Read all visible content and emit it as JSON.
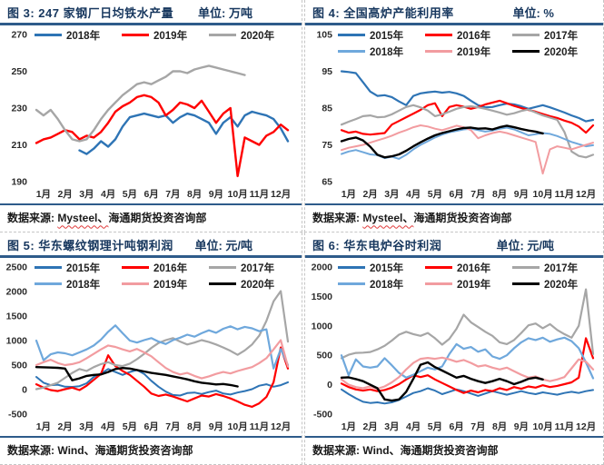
{
  "page": {
    "accent_rule_color": "#2E5B8A",
    "title_color": "#17375E",
    "divider_style": "dashed-gray"
  },
  "panels": [
    {
      "fig_label": "图 3: 247 家钢厂日均铁水产量",
      "unit": "单位: 万吨",
      "source_prefix": "数据来源: ",
      "source_flagged": "Mysteel、",
      "source_rest": "海通期货投资咨询部"
    },
    {
      "fig_label": "图 4: 全国高炉产能利用率",
      "unit": "单位: %",
      "source_prefix": "数据来源: ",
      "source_flagged": "Mysteel、",
      "source_rest": "海通期货投资咨询部"
    },
    {
      "fig_label": "图 5: 华东螺纹钢理计吨钢利润",
      "unit": "单位: 元/吨",
      "source_prefix": "数据来源: ",
      "source_flagged": "",
      "source_rest": "Wind、海通期货投资咨询部"
    },
    {
      "fig_label": "图 6: 华东电炉谷时利润",
      "unit": "单位: 元/吨",
      "source_prefix": "数据来源: ",
      "source_flagged": "",
      "source_rest": "Wind、海通期货投资咨询部"
    }
  ],
  "chart_data": [
    {
      "type": "line",
      "title": "247 家钢厂日均铁水产量",
      "ylabel": "万吨",
      "x_labels": [
        "1月",
        "2月",
        "3月",
        "4月",
        "5月",
        "6月",
        "7月",
        "8月",
        "9月",
        "10月",
        "11月",
        "12月"
      ],
      "ylim": [
        190,
        270
      ],
      "yticks": [
        270,
        250,
        230,
        210,
        190
      ],
      "grid": false,
      "legend_position": "top",
      "series": [
        {
          "name": "2018年",
          "color": "#2E74B5",
          "width": 2.4,
          "values": [
            null,
            null,
            null,
            null,
            null,
            null,
            207,
            205,
            208,
            212,
            209,
            213,
            220,
            225,
            226,
            227,
            226,
            225,
            226,
            222,
            225,
            227,
            226,
            224,
            222,
            216,
            222,
            225,
            220,
            226,
            228,
            227,
            226,
            224,
            219,
            212
          ]
        },
        {
          "name": "2019年",
          "color": "#FF0000",
          "width": 2.4,
          "values": [
            211,
            213,
            214,
            216,
            218,
            217,
            213,
            215,
            214,
            217,
            222,
            228,
            231,
            233,
            236,
            237,
            236,
            233,
            226,
            229,
            233,
            232,
            230,
            234,
            228,
            222,
            227,
            230,
            193,
            214,
            212,
            210,
            215,
            217,
            221,
            218
          ]
        },
        {
          "name": "2020年",
          "color": "#A6A6A6",
          "width": 2.4,
          "values": [
            229,
            226,
            229,
            224,
            218,
            213,
            212,
            213,
            218,
            224,
            229,
            233,
            237,
            240,
            243,
            244,
            243,
            245,
            247,
            250,
            250,
            249,
            251,
            252,
            253,
            252,
            251,
            250,
            249,
            248,
            null,
            null,
            null,
            null,
            null,
            null
          ]
        }
      ]
    },
    {
      "type": "line",
      "title": "全国高炉产能利用率",
      "ylabel": "%",
      "x_labels": [
        "1月",
        "2月",
        "3月",
        "4月",
        "5月",
        "6月",
        "7月",
        "8月",
        "9月",
        "10月",
        "11月",
        "12月"
      ],
      "ylim": [
        65,
        105
      ],
      "yticks": [
        105,
        95,
        85,
        75,
        65
      ],
      "grid": false,
      "legend_position": "top",
      "series": [
        {
          "name": "2015年",
          "color": "#2E74B5",
          "width": 2.2,
          "values": [
            95,
            94.8,
            94.5,
            92,
            89.5,
            88.3,
            88.5,
            88,
            86.8,
            85.8,
            88.3,
            89,
            89.3,
            89.5,
            89.2,
            89.4,
            89,
            88.3,
            87,
            85.8,
            85.2,
            85.3,
            85.8,
            86.2,
            86,
            85.5,
            84.8,
            85.3,
            85.8,
            85.2,
            84.5,
            83.8,
            83,
            82.3,
            81.4,
            81.8
          ]
        },
        {
          "name": "2016年",
          "color": "#FF0000",
          "width": 2.2,
          "values": [
            79,
            78.3,
            78.6,
            78,
            77.8,
            78,
            78.2,
            80.5,
            81.5,
            82.5,
            83.5,
            84.5,
            85.8,
            86.3,
            82.8,
            85.3,
            85.8,
            85.4,
            84.8,
            85.3,
            86,
            86.5,
            87,
            86.3,
            85.6,
            85,
            84.5,
            84,
            83.4,
            82.8,
            82.3,
            81.6,
            81,
            80,
            78.3,
            80.3
          ]
        },
        {
          "name": "2017年",
          "color": "#A6A6A6",
          "width": 2.2,
          "values": [
            80.5,
            81.3,
            82,
            82.8,
            83,
            82.5,
            82.6,
            83.3,
            84.3,
            85.3,
            85.8,
            85.2,
            84.3,
            82.8,
            83.3,
            84,
            84.8,
            85.3,
            85.5,
            85.2,
            84.8,
            84.3,
            83.8,
            83.2,
            83.6,
            84.2,
            84.6,
            83.8,
            83,
            82.4,
            81.8,
            78.5,
            73.2,
            72,
            71.6,
            72.3
          ]
        },
        {
          "name": "2018年",
          "color": "#6FA8DC",
          "width": 2,
          "values": [
            72.5,
            73.2,
            73.6,
            73,
            72.4,
            72.2,
            71.4,
            71.8,
            71.2,
            72.3,
            73.8,
            75,
            76,
            77,
            77.8,
            78.4,
            78.8,
            79.2,
            79.4,
            79,
            78.6,
            78.9,
            79.4,
            79.7,
            79.2,
            78.4,
            77.6,
            77.9,
            78.2,
            78,
            77.4,
            76.6,
            75.8,
            75.2,
            74.6,
            74.9
          ]
        },
        {
          "name": "2019年",
          "color": "#F29CA0",
          "width": 2,
          "values": [
            73.6,
            74.2,
            74.6,
            75,
            75.6,
            76.2,
            76.8,
            77.5,
            78.3,
            79,
            79.8,
            80.3,
            80,
            79.4,
            79,
            79.6,
            80.2,
            79.8,
            79,
            76.8,
            77.6,
            78.2,
            78.6,
            78.2,
            77.6,
            77,
            76.4,
            75.8,
            67.2,
            73.8,
            74.6,
            74.2,
            73.8,
            74.4,
            75,
            75.6
          ]
        },
        {
          "name": "2020年",
          "color": "#000000",
          "width": 2.4,
          "values": [
            76,
            76.6,
            77,
            76.2,
            74.5,
            72.3,
            71.6,
            71.9,
            72.4,
            73.4,
            74.6,
            75.7,
            76.7,
            77.6,
            78.2,
            78.7,
            79.2,
            79.6,
            79.7,
            79.4,
            79.5,
            79.2,
            79.8,
            80.2,
            79.8,
            79.3,
            78.9,
            78.6,
            78.1,
            null,
            null,
            null,
            null,
            null,
            null,
            null
          ]
        }
      ]
    },
    {
      "type": "line",
      "title": "华东螺纹钢理计吨钢利润",
      "ylabel": "元/吨",
      "x_labels": [
        "1月",
        "2月",
        "3月",
        "4月",
        "5月",
        "6月",
        "7月",
        "8月",
        "9月",
        "10月",
        "11月",
        "12月"
      ],
      "ylim": [
        -500,
        2500
      ],
      "yticks": [
        2500,
        2000,
        1500,
        1000,
        500,
        0,
        -500
      ],
      "grid": false,
      "legend_position": "top",
      "series": [
        {
          "name": "2015年",
          "color": "#2E74B5",
          "width": 2,
          "values": [
            260,
            140,
            90,
            100,
            60,
            55,
            70,
            130,
            260,
            330,
            420,
            360,
            300,
            360,
            400,
            320,
            180,
            60,
            -40,
            -110,
            -120,
            -70,
            -60,
            -90,
            -50,
            -20,
            -80,
            -100,
            -60,
            -30,
            10,
            80,
            110,
            60,
            90,
            150
          ]
        },
        {
          "name": "2016年",
          "color": "#FF0000",
          "width": 2.2,
          "values": [
            110,
            40,
            -10,
            -30,
            10,
            40,
            -10,
            80,
            200,
            320,
            700,
            480,
            380,
            300,
            180,
            60,
            -80,
            -130,
            -100,
            -140,
            -190,
            -240,
            -180,
            -120,
            -140,
            -90,
            -130,
            -180,
            -240,
            -310,
            -350,
            -280,
            -150,
            150,
            860,
            430
          ]
        },
        {
          "name": "2017年",
          "color": "#A6A6A6",
          "width": 2.2,
          "values": [
            10,
            40,
            90,
            140,
            240,
            340,
            420,
            380,
            460,
            520,
            560,
            500,
            480,
            530,
            620,
            730,
            850,
            950,
            1010,
            1050,
            980,
            920,
            960,
            1010,
            970,
            920,
            860,
            790,
            710,
            800,
            920,
            1100,
            1400,
            1800,
            2010,
            980
          ]
        },
        {
          "name": "2018年",
          "color": "#6FA8DC",
          "width": 2.2,
          "values": [
            1000,
            600,
            720,
            760,
            740,
            700,
            760,
            820,
            900,
            1020,
            1180,
            1310,
            1150,
            1000,
            960,
            1010,
            1050,
            980,
            930,
            1010,
            1060,
            1120,
            1080,
            1150,
            1210,
            1160,
            1240,
            1290,
            1230,
            1280,
            1250,
            1190,
            1230,
            430,
            830,
            500
          ]
        },
        {
          "name": "2019年",
          "color": "#F29CA0",
          "width": 2.2,
          "values": [
            500,
            560,
            610,
            540,
            500,
            520,
            560,
            640,
            730,
            820,
            900,
            870,
            820,
            780,
            830,
            760,
            680,
            560,
            440,
            360,
            310,
            340,
            280,
            230,
            270,
            320,
            360,
            330,
            380,
            420,
            460,
            540,
            640,
            820,
            1010,
            470
          ]
        },
        {
          "name": "2020年",
          "color": "#000000",
          "width": 2.4,
          "values": [
            460,
            455,
            450,
            445,
            430,
            190,
            230,
            280,
            300,
            310,
            360,
            420,
            440,
            430,
            400,
            370,
            340,
            320,
            300,
            270,
            240,
            210,
            170,
            140,
            125,
            105,
            115,
            95,
            65,
            null,
            null,
            null,
            null,
            null,
            null,
            null
          ]
        }
      ]
    },
    {
      "type": "line",
      "title": "华东电炉谷时利润",
      "ylabel": "元/吨",
      "x_labels": [
        "1月",
        "2月",
        "3月",
        "4月",
        "5月",
        "6月",
        "7月",
        "8月",
        "9月",
        "10月",
        "11月",
        "12月"
      ],
      "ylim": [
        -500,
        2000
      ],
      "yticks": [
        2000,
        1500,
        1000,
        500,
        0,
        -500
      ],
      "grid": false,
      "legend_position": "top",
      "series": [
        {
          "name": "2015年",
          "color": "#2E74B5",
          "width": 2,
          "values": [
            -80,
            -160,
            -230,
            -290,
            -310,
            -300,
            -320,
            -300,
            -260,
            -200,
            -140,
            -110,
            -60,
            -100,
            -160,
            -120,
            -80,
            -110,
            -150,
            -190,
            -150,
            -110,
            -140,
            -170,
            -140,
            -110,
            -140,
            -160,
            -130,
            -150,
            -170,
            -140,
            -120,
            -140,
            -110,
            -90
          ]
        },
        {
          "name": "2016年",
          "color": "#FF0000",
          "width": 2.2,
          "values": [
            20,
            -40,
            -80,
            -100,
            -80,
            -110,
            -90,
            -50,
            10,
            90,
            160,
            130,
            160,
            90,
            30,
            -30,
            -90,
            -140,
            -100,
            -130,
            -90,
            -110,
            -60,
            -90,
            -40,
            -70,
            -30,
            -50,
            -10,
            -40,
            -20,
            10,
            40,
            120,
            790,
            450
          ]
        },
        {
          "name": "2017年",
          "color": "#A6A6A6",
          "width": 2.2,
          "values": [
            450,
            510,
            540,
            545,
            555,
            600,
            660,
            750,
            850,
            900,
            860,
            830,
            880,
            790,
            680,
            780,
            950,
            1190,
            1060,
            980,
            900,
            830,
            720,
            690,
            760,
            880,
            1010,
            1040,
            960,
            1030,
            930,
            860,
            800,
            1000,
            1620,
            520
          ]
        },
        {
          "name": "2018年",
          "color": "#6FA8DC",
          "width": 2.2,
          "values": [
            500,
            160,
            430,
            310,
            290,
            310,
            450,
            330,
            200,
            120,
            170,
            230,
            290,
            260,
            310,
            520,
            690,
            610,
            640,
            560,
            600,
            480,
            440,
            500,
            620,
            720,
            790,
            760,
            800,
            730,
            770,
            800,
            740,
            620,
            380,
            110
          ]
        },
        {
          "name": "2019年",
          "color": "#F29CA0",
          "width": 2.2,
          "values": [
            90,
            0,
            -40,
            -60,
            -30,
            -70,
            -30,
            40,
            130,
            260,
            370,
            440,
            455,
            440,
            460,
            430,
            390,
            420,
            370,
            310,
            330,
            290,
            260,
            290,
            230,
            170,
            120,
            140,
            90,
            60,
            90,
            130,
            280,
            430,
            390,
            260
          ]
        },
        {
          "name": "2020年",
          "color": "#000000",
          "width": 2.4,
          "values": [
            120,
            125,
            95,
            60,
            0,
            -60,
            -250,
            -270,
            -250,
            -120,
            100,
            340,
            380,
            300,
            240,
            180,
            120,
            150,
            100,
            60,
            30,
            60,
            100,
            60,
            10,
            50,
            100,
            120,
            90,
            null,
            null,
            null,
            null,
            null,
            null,
            null
          ]
        }
      ]
    }
  ]
}
